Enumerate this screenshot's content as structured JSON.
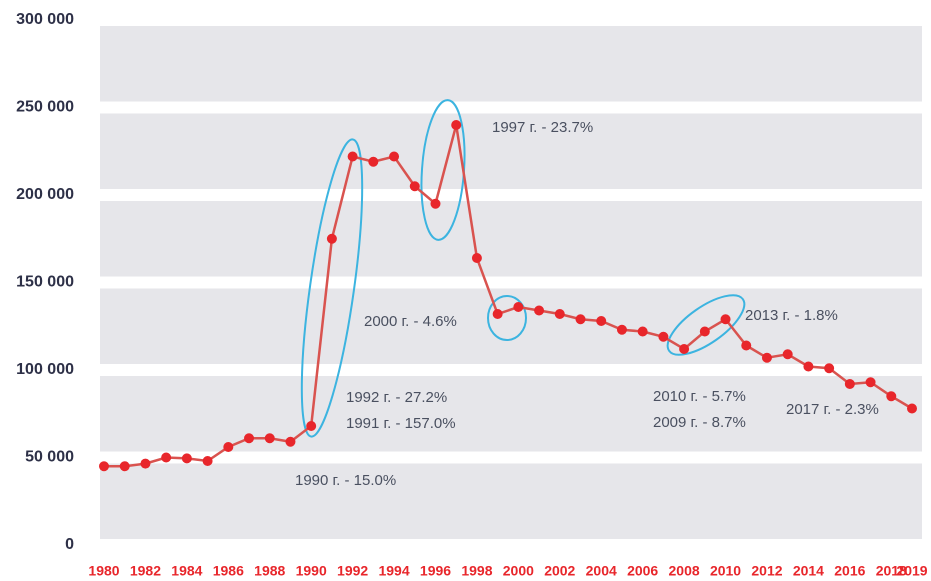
{
  "chart_data": {
    "type": "line",
    "categories": [
      "1980",
      null,
      "1982",
      null,
      "1984",
      null,
      "1986",
      null,
      "1988",
      null,
      "1990",
      null,
      "1992",
      null,
      "1994",
      null,
      "1996",
      null,
      "1998",
      null,
      "2000",
      null,
      "2002",
      null,
      "2004",
      null,
      "2006",
      null,
      "2008",
      null,
      "2010",
      null,
      "2012",
      null,
      "2014",
      null,
      "2016",
      null,
      "2018",
      "2019"
    ],
    "series": [
      {
        "color": "#d9534f",
        "marker_color": "#e8262b",
        "values": [
          45000,
          45000,
          46500,
          50000,
          49500,
          48000,
          56000,
          61000,
          61000,
          59000,
          68000,
          175000,
          222000,
          219000,
          222000,
          205000,
          195000,
          240000,
          164000,
          132000,
          136000,
          134000,
          132000,
          129000,
          128000,
          123000,
          122000,
          119000,
          112000,
          122000,
          129000,
          114000,
          107000,
          109000,
          102000,
          101000,
          92000,
          93000,
          85000,
          78000
        ]
      }
    ],
    "ylim": [
      0,
      300000
    ],
    "yticks": [
      0,
      {
        "value": 50000,
        "label": "50 000"
      },
      {
        "value": 100000,
        "label": "100 000"
      },
      {
        "value": 150000,
        "label": "150 000"
      },
      {
        "value": 200000,
        "label": "200 000"
      },
      {
        "value": 250000,
        "label": "250 000"
      },
      {
        "value": 300000,
        "label": "300 000"
      }
    ],
    "grid": true,
    "annotations": [
      "1997 г. - 23.7%",
      "2000 г. - 4.6%",
      "1992 г. - 27.2%",
      "1991 г. - 157.0%",
      "1990 г. - 15.0%",
      "2013 г. - 1.8%",
      "2010 г. - 5.7%",
      "2009 г. - 8.7%",
      "2017 г. - 2.3%"
    ]
  }
}
